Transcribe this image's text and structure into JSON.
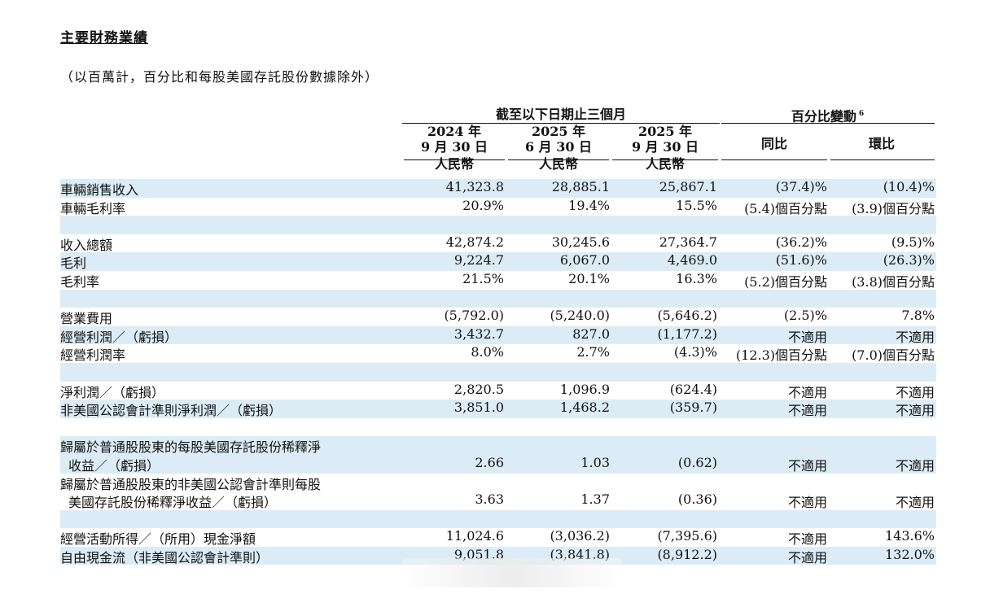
{
  "title": "主要財務業績",
  "note": "（以百萬計，百分比和每股美國存託股份數據除外）",
  "header": {
    "group_left": "截至以下日期止三個月",
    "group_right": "百分比變動",
    "group_right_sup": "6",
    "columns": [
      {
        "year": "2024 年",
        "date": "9 月 30 日",
        "currency": "人民幣"
      },
      {
        "year": "2025 年",
        "date": "6 月 30 日",
        "currency": "人民幣"
      },
      {
        "year": "2025 年",
        "date": "9 月 30 日",
        "currency": "人民幣"
      }
    ],
    "yoy": "同比",
    "qoq": "環比"
  },
  "rows": [
    {
      "label": "車輛銷售收入",
      "values": [
        "41,323.8",
        "28,885.1",
        "25,867.1",
        "(37.4)%",
        "(10.4)%"
      ],
      "blue": true
    },
    {
      "label": "車輛毛利率",
      "values": [
        "20.9%",
        "19.4%",
        "15.5%",
        "(5.4)個百分點",
        "(3.9)個百分點"
      ],
      "blue": false
    },
    {
      "spacer": true,
      "blue": true
    },
    {
      "label": "收入總額",
      "values": [
        "42,874.2",
        "30,245.6",
        "27,364.7",
        "(36.2)%",
        "(9.5)%"
      ],
      "blue": false
    },
    {
      "label": "毛利",
      "values": [
        "9,224.7",
        "6,067.0",
        "4,469.0",
        "(51.6)%",
        "(26.3)%"
      ],
      "blue": true
    },
    {
      "label": "毛利率",
      "values": [
        "21.5%",
        "20.1%",
        "16.3%",
        "(5.2)個百分點",
        "(3.8)個百分點"
      ],
      "blue": false
    },
    {
      "spacer": true,
      "blue": true
    },
    {
      "label": "營業費用",
      "values": [
        "(5,792.0)",
        "(5,240.0)",
        "(5,646.2)",
        "(2.5)%",
        "7.8%"
      ],
      "blue": false
    },
    {
      "label": "經營利潤／（虧損）",
      "values": [
        "3,432.7",
        "827.0",
        "(1,177.2)",
        "不適用",
        "不適用"
      ],
      "blue": true
    },
    {
      "label": "經營利潤率",
      "values": [
        "8.0%",
        "2.7%",
        "(4.3)%",
        "(12.3)個百分點",
        "(7.0)個百分點"
      ],
      "blue": false
    },
    {
      "spacer": true,
      "blue": true
    },
    {
      "label": "淨利潤／（虧損）",
      "values": [
        "2,820.5",
        "1,096.9",
        "(624.4)",
        "不適用",
        "不適用"
      ],
      "blue": false
    },
    {
      "label": "非美國公認會計準則淨利潤／（虧損）",
      "values": [
        "3,851.0",
        "1,468.2",
        "(359.7)",
        "不適用",
        "不適用"
      ],
      "blue": true
    },
    {
      "spacer": true,
      "blue": false
    },
    {
      "label": "歸屬於普通股股東的每股美國存託股份稀釋淨",
      "label2": "收益／（虧損）",
      "values": [
        "2.66",
        "1.03",
        "(0.62)",
        "不適用",
        "不適用"
      ],
      "blue": true,
      "double": true
    },
    {
      "label": "歸屬於普通股股東的非美國公認會計準則每股",
      "label2": "美國存託股份稀釋淨收益／（虧損）",
      "values": [
        "3.63",
        "1.37",
        "(0.36)",
        "不適用",
        "不適用"
      ],
      "blue": false,
      "double": true
    },
    {
      "spacer": true,
      "blue": true
    },
    {
      "label": "經營活動所得／（所用）現金淨額",
      "values": [
        "11,024.6",
        "(3,036.2)",
        "(7,395.6)",
        "不適用",
        "143.6%"
      ],
      "blue": false
    },
    {
      "label": "自由現金流（非美國公認會計準則）",
      "values": [
        "9,051.8",
        "(3,841.8)",
        "(8,912.2)",
        "不適用",
        "132.0%"
      ],
      "blue": true
    }
  ]
}
